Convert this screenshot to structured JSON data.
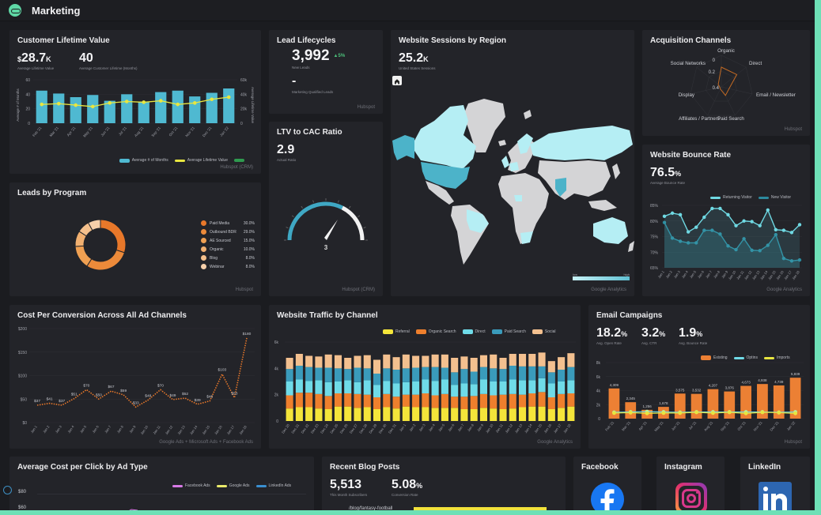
{
  "app": {
    "title": "Marketing",
    "logo_icon": "marketing-logo-icon"
  },
  "colors": {
    "background": "#1b1c20",
    "card": "#232429",
    "accent_teal": "#4fb9d1",
    "yellow": "#e8e640",
    "orange": "#ec8034",
    "frame": "#6ee0b6"
  },
  "clv": {
    "title": "Customer Lifetime Value",
    "kpi1": {
      "prefix": "$",
      "value": "28.7",
      "suffix": "K",
      "label": "Average Lifetime Value"
    },
    "kpi2": {
      "value": "40",
      "label": "Average Customer Lifetime (Months)"
    },
    "y_left_label": "Average # of Months",
    "y_right_label": "Average Lifetime Value",
    "legend": [
      "Average # of Months",
      "Average Lifetime Value",
      ""
    ],
    "source": "Hubspot (CRM)"
  },
  "lead_lifecycles": {
    "title": "Lead Lifecycles",
    "new_leads": "3,992",
    "change": "▲5%",
    "new_leads_label": "New Leads",
    "mql": "-",
    "mql_label": "Marketing Qualified Leads",
    "source": "Hubspot"
  },
  "ltv_cac": {
    "title": "LTV to CAC Ratio",
    "value": "2.9",
    "label": "Actual Ratio",
    "gauge_label": "3",
    "source": "Hubspot (CRM)"
  },
  "sessions_region": {
    "title": "Website Sessions by Region",
    "value": "25.2",
    "suffix": "K",
    "label": "United States Sessions",
    "home_icon": "home-icon",
    "scale_low": "low",
    "scale_high": "high",
    "source": "Google Analytics"
  },
  "acquisition": {
    "title": "Acquisition Channels",
    "axes": [
      "Organic",
      "Direct",
      "Email / Newsletter",
      "Paid Search",
      "Affiliates / Partners",
      "Display",
      "Social Networks"
    ],
    "ticks": [
      "0.4",
      "0.2",
      "0"
    ],
    "source": "Hubspot"
  },
  "bounce": {
    "title": "Website Bounce Rate",
    "value": "76.5",
    "suffix": "%",
    "label": "Average Bounce Rate",
    "legend": [
      "Returning Visitor",
      "New Visitor"
    ],
    "source": "Google Analytics"
  },
  "leads_program": {
    "title": "Leads by Program",
    "items": [
      {
        "label": "Paid Media",
        "pct": "30.0%"
      },
      {
        "label": "Outbound BDR",
        "pct": "29.0%"
      },
      {
        "label": "AE Sourced",
        "pct": "15.0%"
      },
      {
        "label": "Organic",
        "pct": "10.0%"
      },
      {
        "label": "Blog",
        "pct": "8.0%"
      },
      {
        "label": "Webinar",
        "pct": "8.0%"
      }
    ],
    "source": "Hubspot"
  },
  "cpc_conv": {
    "title": "Cost Per Conversion Across All Ad Channels",
    "source": "Google Ads + Microsoft Ads + Facebook Ads"
  },
  "traffic": {
    "title": "Website Traffic by Channel",
    "legend": [
      "Referral",
      "Organic Search",
      "Direct",
      "Paid Search",
      "Social"
    ],
    "source": "Google Analytics"
  },
  "email": {
    "title": "Email Campaigns",
    "kpis": [
      {
        "value": "18.2",
        "suffix": "%",
        "label": "Avg. Open Rate"
      },
      {
        "value": "3.2",
        "suffix": "%",
        "label": "Avg. CTR"
      },
      {
        "value": "1.9",
        "suffix": "%",
        "label": "Avg. Bounce Rate"
      }
    ],
    "legend": [
      "Existing",
      "Optins",
      "Imports"
    ],
    "source": "Hubspot"
  },
  "avg_cpc": {
    "title": "Average Cost per Click by Ad Type",
    "legend": [
      "Facebook Ads",
      "Google Ads",
      "LinkedIn Ads"
    ],
    "y_ticks": [
      "$80",
      "$60"
    ]
  },
  "blog": {
    "title": "Recent Blog Posts",
    "subscribers": "5,513",
    "subscribers_label": "This Month Subscribers",
    "conversion": "5.08",
    "conversion_suffix": "%",
    "conversion_label": "Conversion Rate",
    "first_post": "/blog/fantasy-football"
  },
  "social": [
    {
      "title": "Facebook",
      "icon": "facebook-icon"
    },
    {
      "title": "Instagram",
      "icon": "instagram-icon"
    },
    {
      "title": "LinkedIn",
      "icon": "linkedin-icon"
    }
  ],
  "chart_data": [
    {
      "id": "clv",
      "type": "bar",
      "title": "Customer Lifetime Value",
      "categories": [
        "Feb '21",
        "Mar '21",
        "Apr '21",
        "May '21",
        "Jun '21",
        "Jul '21",
        "Aug '21",
        "Sep '21",
        "Oct '21",
        "Nov '21",
        "Dec '21",
        "Jan '22"
      ],
      "series": [
        {
          "name": "Average # of Months",
          "type": "bar",
          "axis": "left",
          "values": [
            45,
            41,
            36,
            39,
            31,
            40,
            30,
            43,
            45,
            37,
            42,
            48
          ]
        },
        {
          "name": "Average Lifetime Value",
          "type": "line",
          "axis": "right",
          "values": [
            26000,
            27000,
            25000,
            23000,
            28000,
            30000,
            29000,
            31000,
            26000,
            28000,
            33000,
            36000
          ]
        }
      ],
      "ylim_left": [
        0,
        60
      ],
      "y_ticks_left": [
        "0",
        "20",
        "40",
        "60"
      ],
      "ylim_right": [
        0,
        60000
      ],
      "y_ticks_right": [
        "0",
        "20k",
        "40k",
        "60k"
      ]
    },
    {
      "id": "leads_program",
      "type": "pie",
      "title": "Leads by Program",
      "categories": [
        "Paid Media",
        "Outbound BDR",
        "AE Sourced",
        "Organic",
        "Blog",
        "Webinar"
      ],
      "values": [
        30,
        29,
        15,
        10,
        8,
        8
      ],
      "colors": [
        "#e8782a",
        "#ec8a3a",
        "#efa052",
        "#f1b070",
        "#f4c08c",
        "#f6d0ab"
      ]
    },
    {
      "id": "ltv_cac_gauge",
      "type": "gauge",
      "value": 2.9,
      "label": "3",
      "range": [
        0,
        5
      ]
    },
    {
      "id": "acquisition",
      "type": "radar",
      "categories": [
        "Organic",
        "Direct",
        "Email / Newsletter",
        "Paid Search",
        "Affiliates / Partners",
        "Display",
        "Social Networks"
      ],
      "values": [
        0.25,
        0.25,
        0.1,
        0.12,
        0.03,
        0.02,
        0.05
      ],
      "ticks": [
        0,
        0.2,
        0.4
      ]
    },
    {
      "id": "bounce",
      "type": "line",
      "title": "Website Bounce Rate",
      "categories": [
        "Jan 1",
        "Jan 2",
        "Jan 3",
        "Jan 4",
        "Jan 5",
        "Jan 6",
        "Jan 7",
        "Jan 8",
        "Jan 9",
        "Jan 10",
        "Jan 11",
        "Jan 12",
        "Jan 13",
        "Jan 14",
        "Jan 15",
        "Jan 16",
        "Jan 17",
        "Jan 18"
      ],
      "series": [
        {
          "name": "Returning Visitor",
          "values": [
            81.5,
            82.5,
            82,
            76.5,
            78,
            81.2,
            84,
            84,
            82,
            78.5,
            80,
            79.8,
            78.5,
            83.5,
            77.2,
            77,
            76.3,
            78.8
          ]
        },
        {
          "name": "New Visitor",
          "values": [
            79.5,
            74.5,
            73.5,
            73,
            73,
            77,
            77,
            75.8,
            72,
            70.8,
            74.3,
            70.6,
            70.5,
            72.2,
            75.6,
            68,
            67.2,
            67.5
          ]
        }
      ],
      "ylim": [
        65,
        85
      ],
      "y_ticks": [
        "65%",
        "70%",
        "75%",
        "80%",
        "85%"
      ]
    },
    {
      "id": "cost_per_conversion",
      "type": "line",
      "title": "Cost Per Conversion Across All Ad Channels",
      "categories": [
        "Jan 1",
        "Jan 2",
        "Jan 3",
        "Jan 4",
        "Jan 5",
        "Jan 6",
        "Jan 7",
        "Jan 8",
        "Jan 9",
        "Jan 10",
        "Jan 11",
        "Jan 12",
        "Jan 13",
        "Jan 14",
        "Jan 15",
        "Jan 16",
        "Jan 17",
        "Jan 18"
      ],
      "values": [
        37,
        41,
        37,
        51,
        70,
        50,
        67,
        59,
        33,
        48,
        70,
        49,
        52,
        39,
        46,
        103,
        53,
        180
      ],
      "labels": [
        "$37",
        "$41",
        "$37",
        "$51",
        "$70",
        "$50",
        "$67",
        "$59",
        "$33",
        "$48",
        "$70",
        "$49",
        "$52",
        "$39",
        "$46",
        "$103",
        "$53",
        "$180"
      ],
      "ylim": [
        0,
        200
      ],
      "y_ticks": [
        "$0",
        "$50",
        "$100",
        "$150",
        "$200"
      ]
    },
    {
      "id": "traffic",
      "type": "bar",
      "stacked": true,
      "title": "Website Traffic by Channel",
      "categories": [
        "Dec 20",
        "Dec 21",
        "Dec 22",
        "Dec 23",
        "Dec 24",
        "Dec 25",
        "Dec 26",
        "Dec 27",
        "Dec 28",
        "Dec 29",
        "Dec 30",
        "Dec 31",
        "Jan 1",
        "Jan 2",
        "Jan 3",
        "Jan 4",
        "Jan 5",
        "Jan 6",
        "Jan 7",
        "Jan 8",
        "Jan 9",
        "Jan 10",
        "Jan 11",
        "Jan 12",
        "Jan 13",
        "Jan 14",
        "Jan 15",
        "Jan 16",
        "Jan 17",
        "Jan 18"
      ],
      "series": [
        {
          "name": "Referral",
          "color": "#f4e53a",
          "values": [
            950,
            1050,
            1050,
            950,
            900,
            1100,
            1100,
            1000,
            1050,
            900,
            1050,
            950,
            1100,
            1050,
            1050,
            1000,
            1000,
            1000,
            900,
            900,
            1000,
            950,
            900,
            950,
            1050,
            1100,
            1100,
            900,
            1000,
            1100
          ]
        },
        {
          "name": "Organic Search",
          "color": "#ee7f2d",
          "values": [
            1000,
            1100,
            1100,
            1100,
            1000,
            1000,
            1000,
            1050,
            950,
            900,
            1000,
            900,
            900,
            950,
            1050,
            950,
            1050,
            850,
            950,
            1000,
            1050,
            1000,
            1100,
            1100,
            950,
            1000,
            1100,
            900,
            1050,
            1000
          ]
        },
        {
          "name": "Direct",
          "color": "#6fdbe8",
          "values": [
            1050,
            1000,
            900,
            1050,
            1050,
            900,
            1000,
            900,
            1100,
            950,
            1000,
            1000,
            950,
            1000,
            1050,
            1100,
            1100,
            900,
            1000,
            900,
            1100,
            1050,
            1000,
            1100,
            1100,
            1000,
            1050,
            1050,
            950,
            1000
          ]
        },
        {
          "name": "Paid Search",
          "color": "#3a9bbb",
          "values": [
            950,
            1050,
            1050,
            950,
            1100,
            1000,
            850,
            1100,
            900,
            850,
            950,
            1050,
            1050,
            1050,
            950,
            1050,
            900,
            950,
            1100,
            950,
            950,
            1000,
            950,
            1050,
            1050,
            1050,
            900,
            850,
            900,
            1000
          ]
        },
        {
          "name": "Social",
          "color": "#f3c08f",
          "values": [
            850,
            900,
            850,
            850,
            1000,
            1000,
            850,
            900,
            1000,
            1050,
            1050,
            950,
            1050,
            900,
            850,
            950,
            1000,
            1100,
            950,
            1050,
            900,
            1050,
            850,
            900,
            950,
            950,
            1050,
            850,
            950,
            1050
          ]
        }
      ],
      "ylim": [
        0,
        6000
      ],
      "y_ticks": [
        "0",
        "2k",
        "4k",
        "6k"
      ]
    },
    {
      "id": "email",
      "type": "bar",
      "title": "Email Campaigns",
      "categories": [
        "Feb '21",
        "Mar '21",
        "Apr '21",
        "May '21",
        "Jun '21",
        "Jul '21",
        "Aug '21",
        "Sep '21",
        "Oct '21",
        "Nov '21",
        "Dec '21",
        "Jan '22"
      ],
      "series": [
        {
          "name": "Existing",
          "type": "bar",
          "values": [
            4309,
            2345,
            1256,
            1678,
            3575,
            3532,
            4207,
            3876,
            4673,
            4938,
            4739,
            5839
          ]
        },
        {
          "name": "Optins",
          "type": "line",
          "values": [
            900,
            950,
            1000,
            950,
            900,
            950,
            950,
            950,
            950,
            950,
            900,
            950
          ]
        },
        {
          "name": "Imports",
          "type": "line",
          "values": [
            800,
            850,
            750,
            800,
            800,
            900,
            800,
            900,
            750,
            900,
            850,
            750
          ]
        }
      ],
      "labels": [
        "4,309",
        "2,345",
        "1,256",
        "1,678",
        "3,575",
        "3,532",
        "4,207",
        "3,876",
        "4,673",
        "4,938",
        "4,739",
        "5,839"
      ],
      "ylim": [
        0,
        8000
      ],
      "y_ticks": [
        "0",
        "2k",
        "4k",
        "6k",
        "8k"
      ]
    }
  ]
}
